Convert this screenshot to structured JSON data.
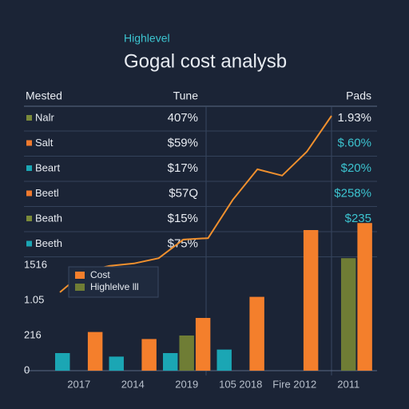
{
  "header": {
    "subtitle": "Highlevel",
    "title": "Gogal cost analysb"
  },
  "table": {
    "columns": [
      "Mested",
      "Tune",
      "Pads"
    ],
    "rows": [
      [
        "Nalr",
        "407%",
        "1.93%"
      ],
      [
        "Salt",
        "$59%",
        "$.60%"
      ],
      [
        "Beart",
        "$17%",
        "$20%"
      ],
      [
        "Beetl",
        "$57Q",
        "$258%"
      ],
      [
        "Beath",
        "$15%",
        "$235"
      ],
      [
        "Beeth",
        "$75%"
      ]
    ],
    "row_colors": [
      "#7a8a3a",
      "#f07a2e",
      "#1ba6b4",
      "#f07a2e",
      "#7a8a3a",
      "#1ba6b4"
    ]
  },
  "chart_data": {
    "type": "bar",
    "categories": [
      "2017",
      "2014",
      "2019",
      "105 2018",
      "Fire 2012",
      "2011"
    ],
    "series": [
      {
        "color": "#1ba6b4",
        "values": [
          0.5,
          0.4,
          0.5,
          0.6,
          null,
          null
        ]
      },
      {
        "name": "Highlelve lll",
        "color": "#6f7d35",
        "values": [
          null,
          null,
          1.0,
          null,
          null,
          3.2
        ]
      },
      {
        "name": "Cost",
        "color": "#f47f2c",
        "values": [
          1.1,
          0.9,
          1.5,
          2.1,
          4.0,
          4.2
        ]
      }
    ],
    "line": {
      "color": "#f0902e",
      "values": [
        2.23,
        2.82,
        2.98,
        3.05,
        3.2,
        3.73,
        3.77,
        4.86,
        5.73,
        5.55,
        6.23,
        7.25
      ]
    },
    "ylim": [
      0,
      7.5
    ],
    "yticks": [
      0,
      {
        "value": 1,
        "label": "216"
      },
      {
        "value": 2,
        "label": "1.05"
      },
      {
        "value": 3,
        "label": "1516"
      }
    ]
  }
}
